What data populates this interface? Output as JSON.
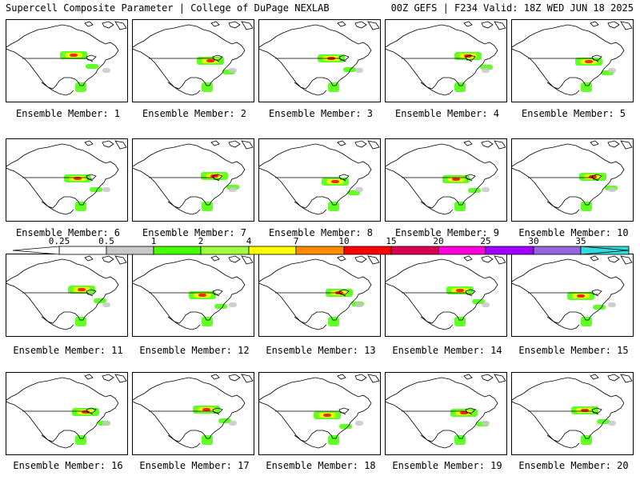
{
  "header": {
    "left": "Supercell Composite Parameter | College of DuPage NEXLAB",
    "right": "00Z GEFS | F234 Valid: 18Z WED JUN 18 2025"
  },
  "legend": {
    "ticks": [
      "0.25",
      "0.5",
      "1",
      "2",
      "4",
      "7",
      "10",
      "15",
      "20",
      "25",
      "30",
      "35"
    ],
    "colors": [
      "#ffffff",
      "#c8c8c8",
      "#46ff00",
      "#a0ff3c",
      "#ffff00",
      "#ff8c00",
      "#ff0000",
      "#dc0050",
      "#ff00dc",
      "#a000ff",
      "#9664dc",
      "#32dcdc"
    ]
  },
  "members": [
    {
      "label": "Ensemble Member: 1"
    },
    {
      "label": "Ensemble Member: 2"
    },
    {
      "label": "Ensemble Member: 3"
    },
    {
      "label": "Ensemble Member: 4"
    },
    {
      "label": "Ensemble Member: 5"
    },
    {
      "label": "Ensemble Member: 6"
    },
    {
      "label": "Ensemble Member: 7"
    },
    {
      "label": "Ensemble Member: 8"
    },
    {
      "label": "Ensemble Member: 9"
    },
    {
      "label": "Ensemble Member: 10"
    },
    {
      "label": "Ensemble Member: 11"
    },
    {
      "label": "Ensemble Member: 12"
    },
    {
      "label": "Ensemble Member: 13"
    },
    {
      "label": "Ensemble Member: 14"
    },
    {
      "label": "Ensemble Member: 15"
    },
    {
      "label": "Ensemble Member: 16"
    },
    {
      "label": "Ensemble Member: 17"
    },
    {
      "label": "Ensemble Member: 18"
    },
    {
      "label": "Ensemble Member: 19"
    },
    {
      "label": "Ensemble Member: 20"
    }
  ]
}
